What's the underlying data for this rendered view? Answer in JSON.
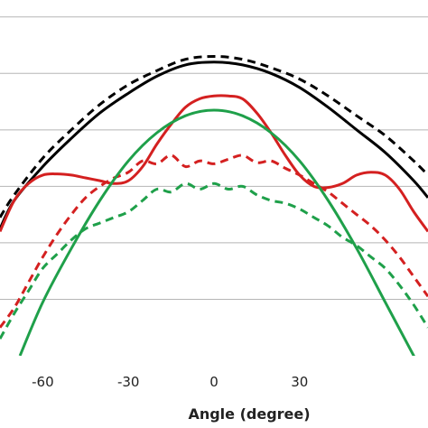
{
  "chart_data": {
    "type": "line",
    "xlabel": "Angle (degree)",
    "ylabel": "",
    "title": "",
    "xlim": [
      -75,
      75
    ],
    "ylim": [
      0,
      6.3
    ],
    "x_ticks": [
      -60,
      -30,
      0,
      30
    ],
    "grid": "horizontal",
    "series": [
      {
        "color": "#000000",
        "dash": "solid",
        "x": [
          -75,
          -70,
          -60,
          -50,
          -40,
          -30,
          -20,
          -10,
          0,
          10,
          20,
          30,
          40,
          50,
          60,
          70,
          75
        ],
        "y": [
          2.25,
          2.75,
          3.35,
          3.85,
          4.3,
          4.65,
          4.95,
          5.15,
          5.2,
          5.15,
          5.0,
          4.75,
          4.4,
          4.0,
          3.6,
          3.1,
          2.8
        ]
      },
      {
        "color": "#000000",
        "dash": "dashed",
        "x": [
          -75,
          -70,
          -60,
          -50,
          -40,
          -30,
          -20,
          -10,
          0,
          10,
          20,
          30,
          40,
          50,
          60,
          70,
          75
        ],
        "y": [
          2.45,
          2.85,
          3.5,
          4.0,
          4.45,
          4.8,
          5.05,
          5.25,
          5.3,
          5.25,
          5.1,
          4.9,
          4.6,
          4.25,
          3.9,
          3.45,
          3.2
        ]
      },
      {
        "color": "#d42020",
        "dash": "solid",
        "x": [
          -75,
          -70,
          -65,
          -60,
          -55,
          -50,
          -45,
          -40,
          -35,
          -30,
          -25,
          -20,
          -15,
          -10,
          -5,
          0,
          5,
          10,
          15,
          20,
          25,
          30,
          35,
          40,
          45,
          50,
          55,
          60,
          65,
          70,
          75
        ],
        "y": [
          2.2,
          2.75,
          3.05,
          3.2,
          3.22,
          3.2,
          3.15,
          3.1,
          3.05,
          3.1,
          3.35,
          3.75,
          4.1,
          4.4,
          4.55,
          4.6,
          4.6,
          4.55,
          4.3,
          3.95,
          3.55,
          3.2,
          3.0,
          2.98,
          3.05,
          3.2,
          3.25,
          3.2,
          2.95,
          2.55,
          2.2
        ]
      },
      {
        "color": "#d42020",
        "dash": "dashed",
        "x": [
          -75,
          -70,
          -65,
          -60,
          -55,
          -50,
          -45,
          -40,
          -35,
          -30,
          -25,
          -20,
          -15,
          -10,
          -5,
          0,
          5,
          10,
          15,
          20,
          25,
          30,
          35,
          40,
          45,
          50,
          55,
          60,
          65,
          70,
          75
        ],
        "y": [
          0.5,
          0.85,
          1.3,
          1.75,
          2.15,
          2.5,
          2.8,
          3.0,
          3.15,
          3.25,
          3.45,
          3.4,
          3.55,
          3.35,
          3.45,
          3.4,
          3.48,
          3.55,
          3.42,
          3.45,
          3.32,
          3.2,
          3.05,
          2.9,
          2.7,
          2.5,
          2.3,
          2.05,
          1.75,
          1.4,
          1.05
        ]
      },
      {
        "color": "#1fa04a",
        "dash": "solid",
        "x": [
          -68,
          -60,
          -50,
          -40,
          -30,
          -20,
          -10,
          0,
          10,
          20,
          30,
          40,
          50,
          60,
          70,
          75
        ],
        "y": [
          0.0,
          0.95,
          1.9,
          2.75,
          3.45,
          3.95,
          4.25,
          4.35,
          4.25,
          3.95,
          3.45,
          2.75,
          1.9,
          0.95,
          0.0,
          -0.5
        ]
      },
      {
        "color": "#1fa04a",
        "dash": "dashed",
        "x": [
          -75,
          -70,
          -65,
          -60,
          -55,
          -50,
          -45,
          -40,
          -35,
          -30,
          -25,
          -20,
          -15,
          -10,
          -5,
          0,
          5,
          10,
          15,
          20,
          25,
          30,
          35,
          40,
          45,
          50,
          55,
          60,
          65,
          70,
          75
        ],
        "y": [
          0.3,
          0.75,
          1.15,
          1.55,
          1.8,
          2.05,
          2.25,
          2.35,
          2.45,
          2.55,
          2.75,
          2.95,
          2.9,
          3.05,
          2.95,
          3.05,
          2.95,
          3.0,
          2.85,
          2.75,
          2.7,
          2.6,
          2.45,
          2.3,
          2.1,
          1.95,
          1.75,
          1.55,
          1.25,
          0.9,
          0.5
        ]
      }
    ]
  }
}
